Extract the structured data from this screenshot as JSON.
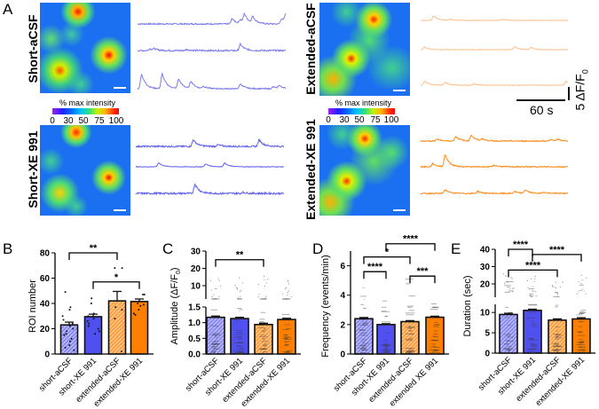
{
  "panel_letters": {
    "A": "A",
    "B": "B",
    "C": "C",
    "D": "D",
    "E": "E"
  },
  "panel_a": {
    "conditions": [
      {
        "label": "Short-aCSF",
        "color": "#7b7bf0",
        "traces": [
          {
            "peaks": [
              [
                115,
                2.0
              ],
              [
                125,
                1.5
              ],
              [
                130,
                3.2
              ],
              [
                140,
                2.4
              ],
              [
                175,
                2.0
              ],
              [
                180,
                3.0
              ]
            ],
            "noise": 0.25
          },
          {
            "peaks": [
              [
                15,
                0.7
              ],
              [
                20,
                0.5
              ],
              [
                60,
                0.4
              ],
              [
                125,
                2.4
              ]
            ],
            "noise": 0.3
          },
          {
            "peaks": [
              [
                5,
                5.5
              ],
              [
                30,
                5.6
              ],
              [
                50,
                3.6
              ],
              [
                65,
                2.7
              ],
              [
                80,
                0.8
              ],
              [
                125,
                1.8
              ],
              [
                165,
                0.7
              ],
              [
                172,
                1.1
              ]
            ],
            "noise": 0.2
          }
        ]
      },
      {
        "label": "Short-XE 991",
        "color": "#6060ee",
        "traces": [
          {
            "peaks": [
              [
                70,
                2.5
              ],
              [
                100,
                0.6
              ],
              [
                150,
                2.5
              ]
            ],
            "noise": 0.3
          },
          {
            "peaks": [
              [
                28,
                1.5
              ],
              [
                85,
                1.1
              ],
              [
                108,
                1.4
              ]
            ],
            "noise": 0.1
          },
          {
            "peaks": [
              [
                72,
                3.5
              ],
              [
                130,
                0.4
              ]
            ],
            "noise": 0.35
          }
        ]
      },
      {
        "label": "Extended-aCSF",
        "color": "#ffbf8a",
        "traces": [
          {
            "peaks": [
              [
                16,
                1.7
              ],
              [
                36,
                0.5
              ],
              [
                100,
                0.4
              ]
            ],
            "noise": 0.08
          },
          {
            "peaks": [
              [
                5,
                1.0
              ],
              [
                115,
                1.1
              ],
              [
                135,
                0.8
              ]
            ],
            "noise": 0.08
          },
          {
            "peaks": [
              [
                5,
                1.6
              ],
              [
                30,
                1.0
              ],
              [
                65,
                0.5
              ],
              [
                178,
                1.5
              ]
            ],
            "noise": 0.12
          }
        ]
      },
      {
        "label": "Extended-XE 991",
        "color": "#ff8a1a",
        "traces": [
          {
            "peaks": [
              [
                20,
                0.8
              ],
              [
                43,
                1.8
              ],
              [
                62,
                2.2
              ],
              [
                75,
                0.8
              ],
              [
                160,
                0.6
              ],
              [
                168,
                0.5
              ]
            ],
            "noise": 0.2
          },
          {
            "peaks": [
              [
                15,
                1.2
              ],
              [
                30,
                4.5
              ],
              [
                90,
                0.6
              ]
            ],
            "noise": 0.2
          },
          {
            "peaks": [
              [
                30,
                1.4
              ],
              [
                70,
                0.8
              ],
              [
                115,
                0.7
              ],
              [
                128,
                1.3
              ],
              [
                150,
                0.5
              ]
            ],
            "noise": 0.2
          }
        ]
      }
    ],
    "colorbar": {
      "title": "% max intensity",
      "ticks": [
        "0",
        "30",
        "50",
        "75",
        "100"
      ]
    },
    "scale_bar": {
      "time_label": "60 s",
      "amp_label": "5 ΔF/F",
      "amp_sub": "0"
    }
  },
  "chart_data": [
    {
      "panel": "B",
      "type": "bar",
      "ylabel": "ROI number",
      "categories": [
        "short-aCSF",
        "short-XE 991",
        "extended-aCSF",
        "extended-XE 991"
      ],
      "values": [
        23,
        29.5,
        42,
        41.5
      ],
      "errors": [
        2.2,
        2.0,
        7.5,
        2.0
      ],
      "ylim": [
        0,
        80
      ],
      "yticks": [
        "0",
        "20",
        "40",
        "60",
        "80"
      ],
      "points": [
        [
          49,
          37,
          35,
          30,
          27,
          24,
          22,
          20,
          18,
          16,
          15,
          12,
          10,
          7,
          5,
          3
        ],
        [
          44,
          40,
          32,
          30,
          28,
          26,
          24,
          22,
          20,
          18,
          16
        ],
        [
          68,
          68,
          37,
          35,
          28,
          2
        ],
        [
          47,
          47,
          40,
          39,
          38,
          35,
          32,
          31
        ]
      ],
      "significance": [
        {
          "from": 0,
          "to": 2,
          "label": "**",
          "y": 80
        },
        {
          "from": 1,
          "to": 3,
          "label": "*",
          "y": 57
        }
      ]
    },
    {
      "panel": "C",
      "type": "bar",
      "ylabel": "Amplitude (ΔF/F",
      "ylabel_sub": "0",
      "ylabel_end": ")",
      "categories": [
        "short-aCSF",
        "short-XE 991",
        "extended-aCSF",
        "extended-XE 991"
      ],
      "values": [
        1.17,
        1.13,
        0.94,
        1.1
      ],
      "errors": [
        0.04,
        0.04,
        0.04,
        0.04
      ],
      "ylim": [
        0,
        30
      ],
      "yticks": [
        "0.0",
        "0.5",
        "1.0",
        "1.5",
        "10",
        "20",
        "30"
      ],
      "significance": [
        {
          "from": 0,
          "to": 2,
          "label": "**",
          "y": 25
        }
      ]
    },
    {
      "panel": "D",
      "type": "bar",
      "ylabel": "Frequency (events/min)",
      "categories": [
        "short-aCSF",
        "short-XE 991",
        "extended-aCSF",
        "extended XE 991"
      ],
      "values": [
        2.4,
        2.0,
        2.2,
        2.5
      ],
      "errors": [
        0.08,
        0.06,
        0.07,
        0.07
      ],
      "ylim": [
        0,
        7
      ],
      "yticks": [
        "0",
        "2",
        "4",
        "6"
      ],
      "significance": [
        {
          "from": 0,
          "to": 1,
          "label": "****",
          "y": 5.6
        },
        {
          "from": 0,
          "to": 2,
          "label": "*",
          "y": 6.6
        },
        {
          "from": 1,
          "to": 3,
          "label": "****",
          "y": 7.5
        },
        {
          "from": 2,
          "to": 3,
          "label": "***",
          "y": 5.3
        }
      ]
    },
    {
      "panel": "E",
      "type": "bar",
      "ylabel": "Duration (sec)",
      "categories": [
        "short-aCSF",
        "short-XE 991",
        "extended-aCSF",
        "extended-XE 991"
      ],
      "values": [
        9.5,
        10.5,
        8.1,
        8.4
      ],
      "errors": [
        0.3,
        0.3,
        0.3,
        0.3
      ],
      "ylim": [
        0,
        40
      ],
      "yticks": [
        "0",
        "5",
        "10",
        "20",
        "30",
        "40"
      ],
      "significance": [
        {
          "from": 0,
          "to": 1,
          "label": "****",
          "y": 40
        },
        {
          "from": 0,
          "to": 2,
          "label": "****",
          "y": 28
        },
        {
          "from": 1,
          "to": 3,
          "label": "****",
          "y": 37
        }
      ]
    }
  ],
  "colors": {
    "short": "#5050f0",
    "short_light": "#8b8bf5",
    "extended": "#ff8000",
    "extended_light": "#ffae5c"
  }
}
